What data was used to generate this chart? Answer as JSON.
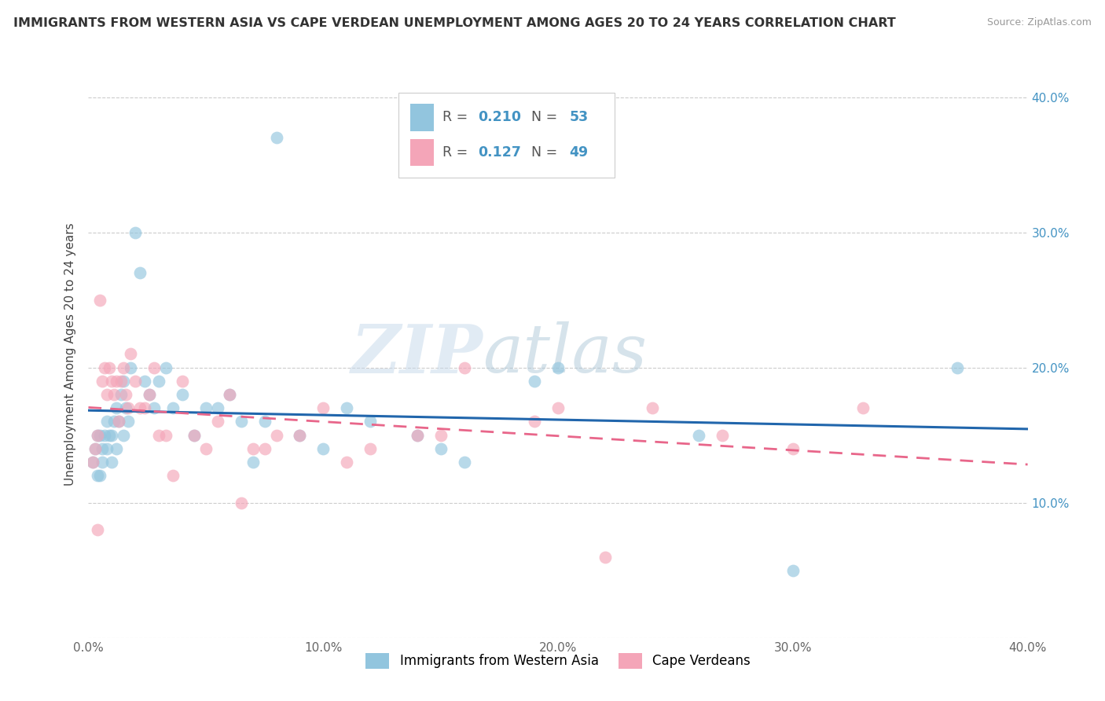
{
  "title": "IMMIGRANTS FROM WESTERN ASIA VS CAPE VERDEAN UNEMPLOYMENT AMONG AGES 20 TO 24 YEARS CORRELATION CHART",
  "source": "Source: ZipAtlas.com",
  "ylabel": "Unemployment Among Ages 20 to 24 years",
  "xlim": [
    0.0,
    0.4
  ],
  "ylim": [
    0.0,
    0.42
  ],
  "yticks": [
    0.0,
    0.1,
    0.2,
    0.3,
    0.4
  ],
  "ytick_labels_right": [
    "",
    "10.0%",
    "20.0%",
    "30.0%",
    "40.0%"
  ],
  "xticks": [
    0.0,
    0.1,
    0.2,
    0.3,
    0.4
  ],
  "xtick_labels": [
    "0.0%",
    "10.0%",
    "20.0%",
    "30.0%",
    "40.0%"
  ],
  "legend_r1": "0.210",
  "legend_n1": "53",
  "legend_r2": "0.127",
  "legend_n2": "49",
  "legend_label1": "Immigrants from Western Asia",
  "legend_label2": "Cape Verdeans",
  "color_blue": "#92c5de",
  "color_pink": "#f4a5b8",
  "color_blue_line": "#2166ac",
  "color_pink_line": "#e8668a",
  "color_r_n": "#4393c3",
  "watermark_zip": "ZIP",
  "watermark_atlas": "atlas",
  "blue_scatter_x": [
    0.002,
    0.003,
    0.004,
    0.004,
    0.005,
    0.005,
    0.006,
    0.006,
    0.007,
    0.008,
    0.008,
    0.009,
    0.01,
    0.01,
    0.011,
    0.012,
    0.012,
    0.013,
    0.014,
    0.015,
    0.015,
    0.016,
    0.017,
    0.018,
    0.02,
    0.022,
    0.024,
    0.026,
    0.028,
    0.03,
    0.033,
    0.036,
    0.04,
    0.045,
    0.05,
    0.055,
    0.06,
    0.065,
    0.07,
    0.075,
    0.08,
    0.09,
    0.1,
    0.11,
    0.12,
    0.14,
    0.15,
    0.16,
    0.19,
    0.2,
    0.26,
    0.3,
    0.37
  ],
  "blue_scatter_y": [
    0.13,
    0.14,
    0.15,
    0.12,
    0.15,
    0.12,
    0.14,
    0.13,
    0.15,
    0.16,
    0.14,
    0.15,
    0.15,
    0.13,
    0.16,
    0.17,
    0.14,
    0.16,
    0.18,
    0.19,
    0.15,
    0.17,
    0.16,
    0.2,
    0.3,
    0.27,
    0.19,
    0.18,
    0.17,
    0.19,
    0.2,
    0.17,
    0.18,
    0.15,
    0.17,
    0.17,
    0.18,
    0.16,
    0.13,
    0.16,
    0.37,
    0.15,
    0.14,
    0.17,
    0.16,
    0.15,
    0.14,
    0.13,
    0.19,
    0.2,
    0.15,
    0.05,
    0.2
  ],
  "pink_scatter_x": [
    0.002,
    0.003,
    0.004,
    0.004,
    0.005,
    0.006,
    0.007,
    0.008,
    0.009,
    0.01,
    0.011,
    0.012,
    0.013,
    0.014,
    0.015,
    0.016,
    0.017,
    0.018,
    0.02,
    0.022,
    0.024,
    0.026,
    0.028,
    0.03,
    0.033,
    0.036,
    0.04,
    0.045,
    0.05,
    0.055,
    0.06,
    0.065,
    0.07,
    0.075,
    0.08,
    0.09,
    0.1,
    0.11,
    0.12,
    0.14,
    0.15,
    0.16,
    0.19,
    0.2,
    0.22,
    0.24,
    0.27,
    0.3,
    0.33
  ],
  "pink_scatter_y": [
    0.13,
    0.14,
    0.08,
    0.15,
    0.25,
    0.19,
    0.2,
    0.18,
    0.2,
    0.19,
    0.18,
    0.19,
    0.16,
    0.19,
    0.2,
    0.18,
    0.17,
    0.21,
    0.19,
    0.17,
    0.17,
    0.18,
    0.2,
    0.15,
    0.15,
    0.12,
    0.19,
    0.15,
    0.14,
    0.16,
    0.18,
    0.1,
    0.14,
    0.14,
    0.15,
    0.15,
    0.17,
    0.13,
    0.14,
    0.15,
    0.15,
    0.2,
    0.16,
    0.17,
    0.06,
    0.17,
    0.15,
    0.14,
    0.17
  ]
}
